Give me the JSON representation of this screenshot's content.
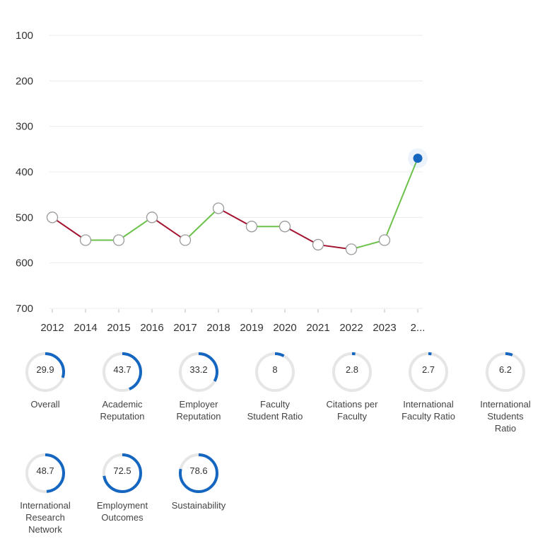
{
  "chart_data": {
    "type": "line",
    "x": [
      "2012",
      "2014",
      "2015",
      "2016",
      "2017",
      "2018",
      "2019",
      "2020",
      "2021",
      "2022",
      "2023",
      "2..."
    ],
    "values": [
      500,
      550,
      550,
      500,
      550,
      480,
      520,
      520,
      560,
      570,
      550,
      370
    ],
    "y_ticks": [
      "100",
      "200",
      "300",
      "400",
      "500",
      "600",
      "700"
    ],
    "ylim": [
      700,
      100
    ],
    "y_inverted": true,
    "grid": true,
    "colors": {
      "up": "#6cc24a",
      "down": "#a3122f",
      "highlight": "#1466c0",
      "marker_stroke": "#9a9a9a"
    }
  },
  "metrics": [
    {
      "value": "29.9",
      "label": "Overall"
    },
    {
      "value": "43.7",
      "label": "Academic\nReputation"
    },
    {
      "value": "33.2",
      "label": "Employer\nReputation"
    },
    {
      "value": "8",
      "label": "Faculty\nStudent Ratio"
    },
    {
      "value": "2.8",
      "label": "Citations per\nFaculty"
    },
    {
      "value": "2.7",
      "label": "International\nFaculty Ratio"
    },
    {
      "value": "6.2",
      "label": "International\nStudents\nRatio"
    },
    {
      "value": "48.7",
      "label": "International\nResearch\nNetwork"
    },
    {
      "value": "72.5",
      "label": "Employment\nOutcomes"
    },
    {
      "value": "78.6",
      "label": "Sustainability"
    }
  ],
  "ring_colors": {
    "track": "#e6e6e6",
    "fill": "#1466c0"
  }
}
